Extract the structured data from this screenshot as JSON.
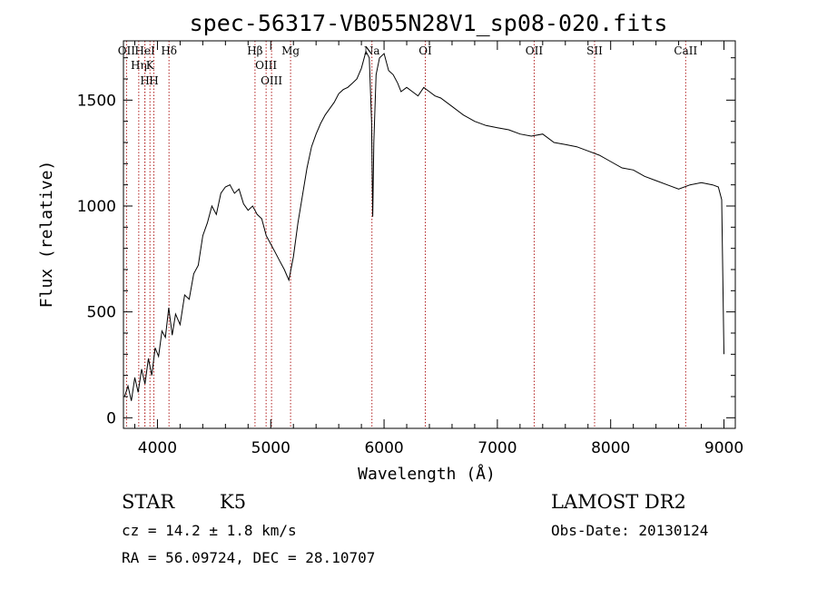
{
  "chart_data": {
    "type": "line",
    "title": "spec-56317-VB055N28V1_sp08-020.fits",
    "xlabel": "Wavelength (Å)",
    "ylabel": "Flux (relative)",
    "xlim": [
      3700,
      9100
    ],
    "ylim": [
      -50,
      1780
    ],
    "xticks": [
      4000,
      5000,
      6000,
      7000,
      8000,
      9000
    ],
    "yticks": [
      0,
      500,
      1000,
      1500
    ],
    "grid": false,
    "series": [
      {
        "x": [
          3710,
          3740,
          3770,
          3800,
          3830,
          3860,
          3890,
          3920,
          3950,
          3980,
          4010,
          4040,
          4070,
          4100,
          4130,
          4160,
          4200,
          4240,
          4280,
          4320,
          4360,
          4400,
          4440,
          4480,
          4520,
          4560,
          4600,
          4640,
          4680,
          4720,
          4760,
          4800,
          4840,
          4880,
          4920,
          4960,
          5000,
          5040,
          5080,
          5120,
          5160,
          5200,
          5240,
          5280,
          5320,
          5360,
          5400,
          5440,
          5480,
          5520,
          5560,
          5600,
          5640,
          5680,
          5720,
          5760,
          5800,
          5840,
          5870,
          5890,
          5900,
          5910,
          5930,
          5960,
          6000,
          6040,
          6080,
          6120,
          6150,
          6200,
          6250,
          6300,
          6350,
          6400,
          6450,
          6500,
          6600,
          6700,
          6800,
          6900,
          7000,
          7100,
          7200,
          7300,
          7400,
          7500,
          7600,
          7700,
          7800,
          7900,
          8000,
          8100,
          8200,
          8300,
          8400,
          8500,
          8600,
          8700,
          8800,
          8900,
          8950,
          8980,
          9000
        ],
        "y": [
          100,
          150,
          80,
          190,
          120,
          230,
          160,
          280,
          200,
          330,
          290,
          410,
          380,
          520,
          390,
          490,
          440,
          580,
          560,
          680,
          720,
          860,
          920,
          1000,
          960,
          1060,
          1090,
          1100,
          1060,
          1080,
          1010,
          980,
          1000,
          960,
          940,
          860,
          820,
          780,
          740,
          700,
          650,
          760,
          920,
          1050,
          1180,
          1280,
          1340,
          1390,
          1430,
          1460,
          1490,
          1530,
          1550,
          1560,
          1580,
          1600,
          1650,
          1730,
          1700,
          1400,
          950,
          1300,
          1620,
          1700,
          1720,
          1640,
          1620,
          1580,
          1540,
          1560,
          1540,
          1520,
          1560,
          1540,
          1520,
          1510,
          1470,
          1430,
          1400,
          1380,
          1370,
          1360,
          1340,
          1330,
          1340,
          1300,
          1290,
          1280,
          1260,
          1240,
          1210,
          1180,
          1170,
          1140,
          1120,
          1100,
          1080,
          1100,
          1110,
          1100,
          1090,
          1030,
          300
        ]
      }
    ],
    "lines": [
      {
        "label": "OII",
        "x": 3727
      },
      {
        "label": "Hη",
        "x": 3835
      },
      {
        "label": "H",
        "x": 3889
      },
      {
        "label": "HeI",
        "x": 3889
      },
      {
        "label": "K",
        "x": 3934
      },
      {
        "label": "H",
        "x": 3968
      },
      {
        "label": "Hδ",
        "x": 4102
      },
      {
        "label": "Hβ",
        "x": 4861
      },
      {
        "label": "OIII",
        "x": 4959
      },
      {
        "label": "OIII",
        "x": 5007
      },
      {
        "label": "Mg",
        "x": 5175
      },
      {
        "label": "Na",
        "x": 5893
      },
      {
        "label": "OI",
        "x": 6364
      },
      {
        "label": "OII",
        "x": 7325
      },
      {
        "label": "SII",
        "x": 7858
      },
      {
        "label": "CaII",
        "x": 8662
      }
    ]
  },
  "info": {
    "class": "STAR",
    "subclass": "K5",
    "survey": "LAMOST DR2",
    "cz": "cz = 14.2 ± 1.8 km/s",
    "obs_date": "Obs-Date: 20130124",
    "radec": "RA =  56.09724, DEC =  28.10707"
  }
}
